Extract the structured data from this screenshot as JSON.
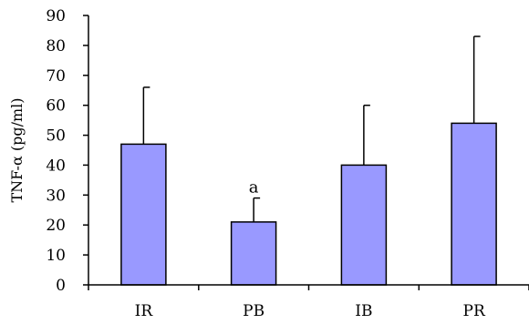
{
  "chart_data": {
    "type": "bar",
    "title": "",
    "xlabel": "",
    "ylabel": "TNF-α (pg/ml)",
    "ylim": [
      0,
      90
    ],
    "yticks": [
      0,
      10,
      20,
      30,
      40,
      50,
      60,
      70,
      80,
      90
    ],
    "categories": [
      "IR",
      "PB",
      "IB",
      "PR"
    ],
    "values": [
      47,
      21,
      40,
      54
    ],
    "error_upper": [
      66,
      29,
      60,
      83
    ],
    "annotations": [
      {
        "category": "PB",
        "text": "a"
      }
    ],
    "grid": false,
    "legend": "none",
    "colors": {
      "bar_fill": "#9999FF",
      "bar_stroke": "#000000",
      "axis": "#000000",
      "text": "#000000"
    }
  }
}
